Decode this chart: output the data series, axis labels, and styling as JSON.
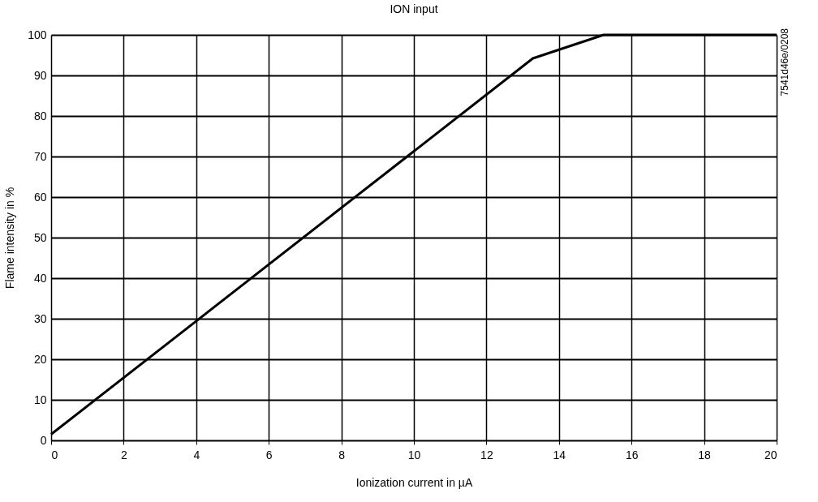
{
  "chart_data": {
    "type": "line",
    "title": "ION input",
    "xlabel": "Ionization current in µA",
    "ylabel": "Flame intensity in %",
    "x": [
      0,
      13.28,
      15.23,
      20
    ],
    "series": [
      {
        "color": "#000000",
        "values": [
          1.5,
          94.2,
          100,
          100
        ]
      }
    ],
    "xlim": [
      0,
      20
    ],
    "xticks": [
      0,
      2,
      4,
      6,
      8,
      10,
      12,
      14,
      16,
      18,
      20
    ],
    "ylim": [
      0,
      100
    ],
    "yticks": [
      0,
      10,
      20,
      30,
      40,
      50,
      60,
      70,
      80,
      90,
      100
    ],
    "grid": true,
    "legend": false,
    "marker": "none",
    "line_style": "solid",
    "annotations": [
      "7541d46e/0208"
    ]
  }
}
